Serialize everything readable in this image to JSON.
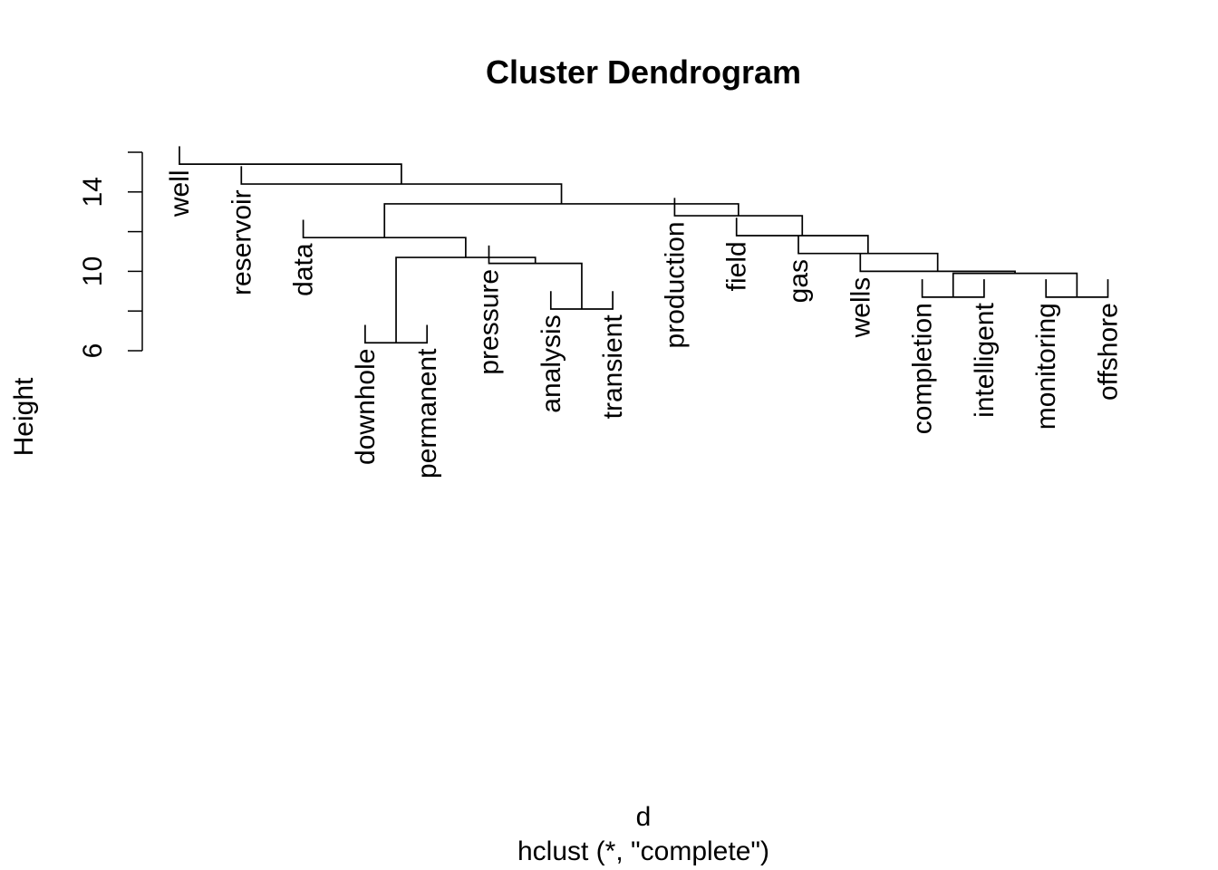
{
  "chart_data": {
    "type": "dendrogram",
    "title": "Cluster Dendrogram",
    "ylabel": "Height",
    "xlabel": "d",
    "subtitle": "hclust (*, \"complete\")",
    "yticks": [
      6,
      10,
      14
    ],
    "ylim": [
      6,
      16
    ],
    "leaves": [
      {
        "label": "well",
        "height": 16.3
      },
      {
        "label": "reservoir",
        "height": 15.3
      },
      {
        "label": "data",
        "height": 12.6
      },
      {
        "label": "downhole",
        "height": 7.3
      },
      {
        "label": "permanent",
        "height": 7.3
      },
      {
        "label": "pressure",
        "height": 11.3
      },
      {
        "label": "analysis",
        "height": 9.0
      },
      {
        "label": "transient",
        "height": 9.0
      },
      {
        "label": "production",
        "height": 13.7
      },
      {
        "label": "field",
        "height": 12.7
      },
      {
        "label": "gas",
        "height": 11.8
      },
      {
        "label": "wells",
        "height": 10.9
      },
      {
        "label": "completion",
        "height": 9.6
      },
      {
        "label": "intelligent",
        "height": 9.6
      },
      {
        "label": "monitoring",
        "height": 9.6
      },
      {
        "label": "offshore",
        "height": 9.6
      }
    ],
    "merges": [
      {
        "left": "downhole",
        "right": "permanent",
        "height": 6.4
      },
      {
        "left": "analysis",
        "right": "transient",
        "height": 8.1
      },
      {
        "left": "completion",
        "right": "intelligent",
        "height": 8.7
      },
      {
        "left": "monitoring",
        "right": "offshore",
        "height": 8.7
      },
      {
        "left": "pressure",
        "right": "analysis+transient",
        "height": 10.4
      },
      {
        "left": "completion+intelligent",
        "right": "monitoring+offshore",
        "height": 9.9
      },
      {
        "left": "wells",
        "right": "completion+intelligent+monitoring+offshore",
        "height": 10.0
      },
      {
        "left": "downhole+permanent",
        "right": "pressure+analysis+transient",
        "height": 10.7
      },
      {
        "left": "gas",
        "right": "wells+...",
        "height": 10.9
      },
      {
        "left": "data",
        "right": "downhole+...+transient",
        "height": 11.7
      },
      {
        "left": "field",
        "right": "gas+...",
        "height": 11.8
      },
      {
        "left": "production",
        "right": "field+...",
        "height": 12.8
      },
      {
        "left": "data+...",
        "right": "production+...",
        "height": 13.4
      },
      {
        "left": "reservoir",
        "right": "data+...+offshore",
        "height": 14.4
      },
      {
        "left": "well",
        "right": "reservoir+...",
        "height": 15.4
      }
    ]
  }
}
